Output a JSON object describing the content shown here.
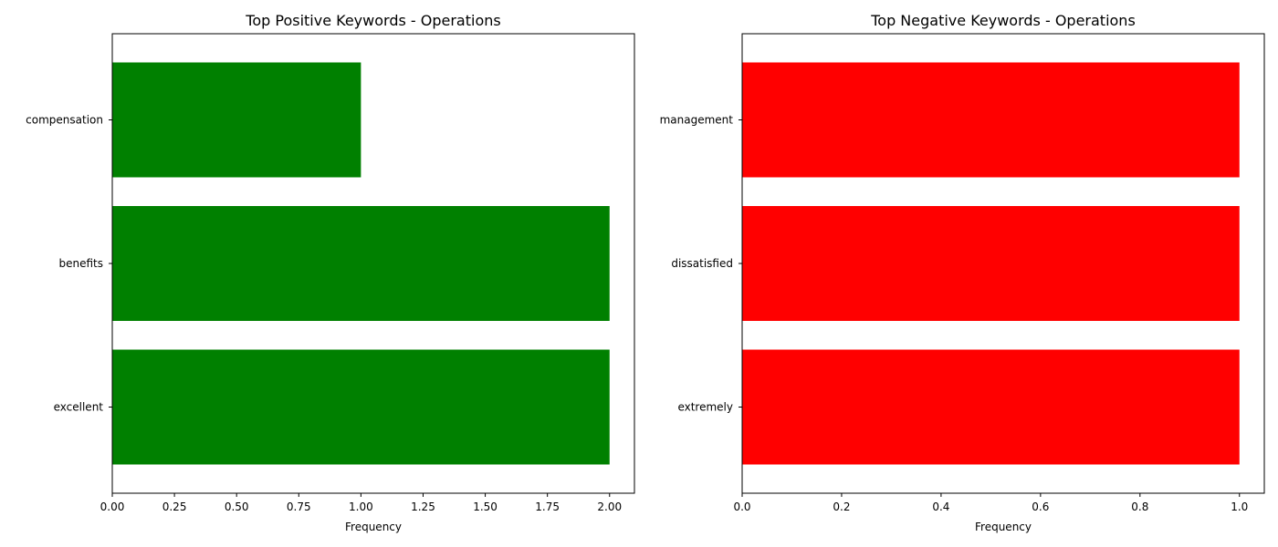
{
  "chart_data": [
    {
      "type": "bar",
      "orientation": "horizontal",
      "title": "Top Positive Keywords - Operations",
      "xlabel": "Frequency",
      "ylabel": "",
      "categories": [
        "excellent",
        "benefits",
        "compensation"
      ],
      "values": [
        2,
        2,
        1
      ],
      "xlim": [
        0,
        2.1
      ],
      "xticks": [
        0,
        0.25,
        0.5,
        0.75,
        1.0,
        1.25,
        1.5,
        1.75,
        2.0
      ],
      "xtick_labels": [
        "0.00",
        "0.25",
        "0.50",
        "0.75",
        "1.00",
        "1.25",
        "1.50",
        "1.75",
        "2.00"
      ],
      "color": "#008000",
      "grid": false,
      "legend": "none"
    },
    {
      "type": "bar",
      "orientation": "horizontal",
      "title": "Top Negative Keywords - Operations",
      "xlabel": "Frequency",
      "ylabel": "",
      "categories": [
        "extremely",
        "dissatisfied",
        "management"
      ],
      "values": [
        1,
        1,
        1
      ],
      "xlim": [
        0,
        1.05
      ],
      "xticks": [
        0,
        0.2,
        0.4,
        0.6,
        0.8,
        1.0
      ],
      "xtick_labels": [
        "0.0",
        "0.2",
        "0.4",
        "0.6",
        "0.8",
        "1.0"
      ],
      "color": "#ff0000",
      "grid": false,
      "legend": "none"
    }
  ]
}
